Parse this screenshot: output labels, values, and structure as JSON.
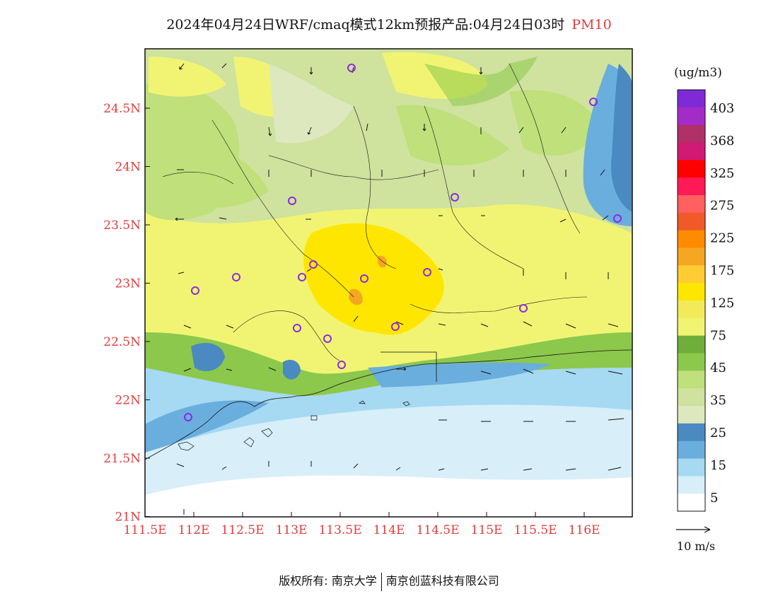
{
  "title": {
    "main": "2024年04月24日WRF/cmaq模式12km预报产品:04月24日03时",
    "variable": "PM10"
  },
  "map": {
    "lat_labels": [
      "24.5N",
      "24N",
      "23.5N",
      "23N",
      "22.5N",
      "22N",
      "21.5N",
      "21N"
    ],
    "lon_labels": [
      "111.5E",
      "112E",
      "112.5E",
      "113E",
      "113.5E",
      "114E",
      "114.5E",
      "115E",
      "115.5E",
      "116E"
    ],
    "label_color": "#e03c3c"
  },
  "legend": {
    "unit": "(ug/m3)",
    "labels": [
      "403",
      "368",
      "325",
      "275",
      "225",
      "175",
      "125",
      "75",
      "45",
      "35",
      "25",
      "15",
      "5"
    ],
    "colors": [
      "#7e2ad6",
      "#a32cc8",
      "#b03068",
      "#d01a74",
      "#ff0000",
      "#ff1a55",
      "#ff6060",
      "#f05a28",
      "#ff8c00",
      "#f5a623",
      "#ffcc33",
      "#ffe600",
      "#f3ea5a",
      "#f1f472",
      "#6fae3a",
      "#8cc84b",
      "#bfe07a",
      "#cfe29e",
      "#dde8bf",
      "#4a8ac0",
      "#6aaede",
      "#a6d9f2",
      "#d8eef9",
      "#ffffff"
    ]
  },
  "wind": {
    "reference_label": "10 m/s"
  },
  "footer": {
    "left": "版权所有: 南京大学",
    "right": "南京创蓝科技有限公司"
  }
}
